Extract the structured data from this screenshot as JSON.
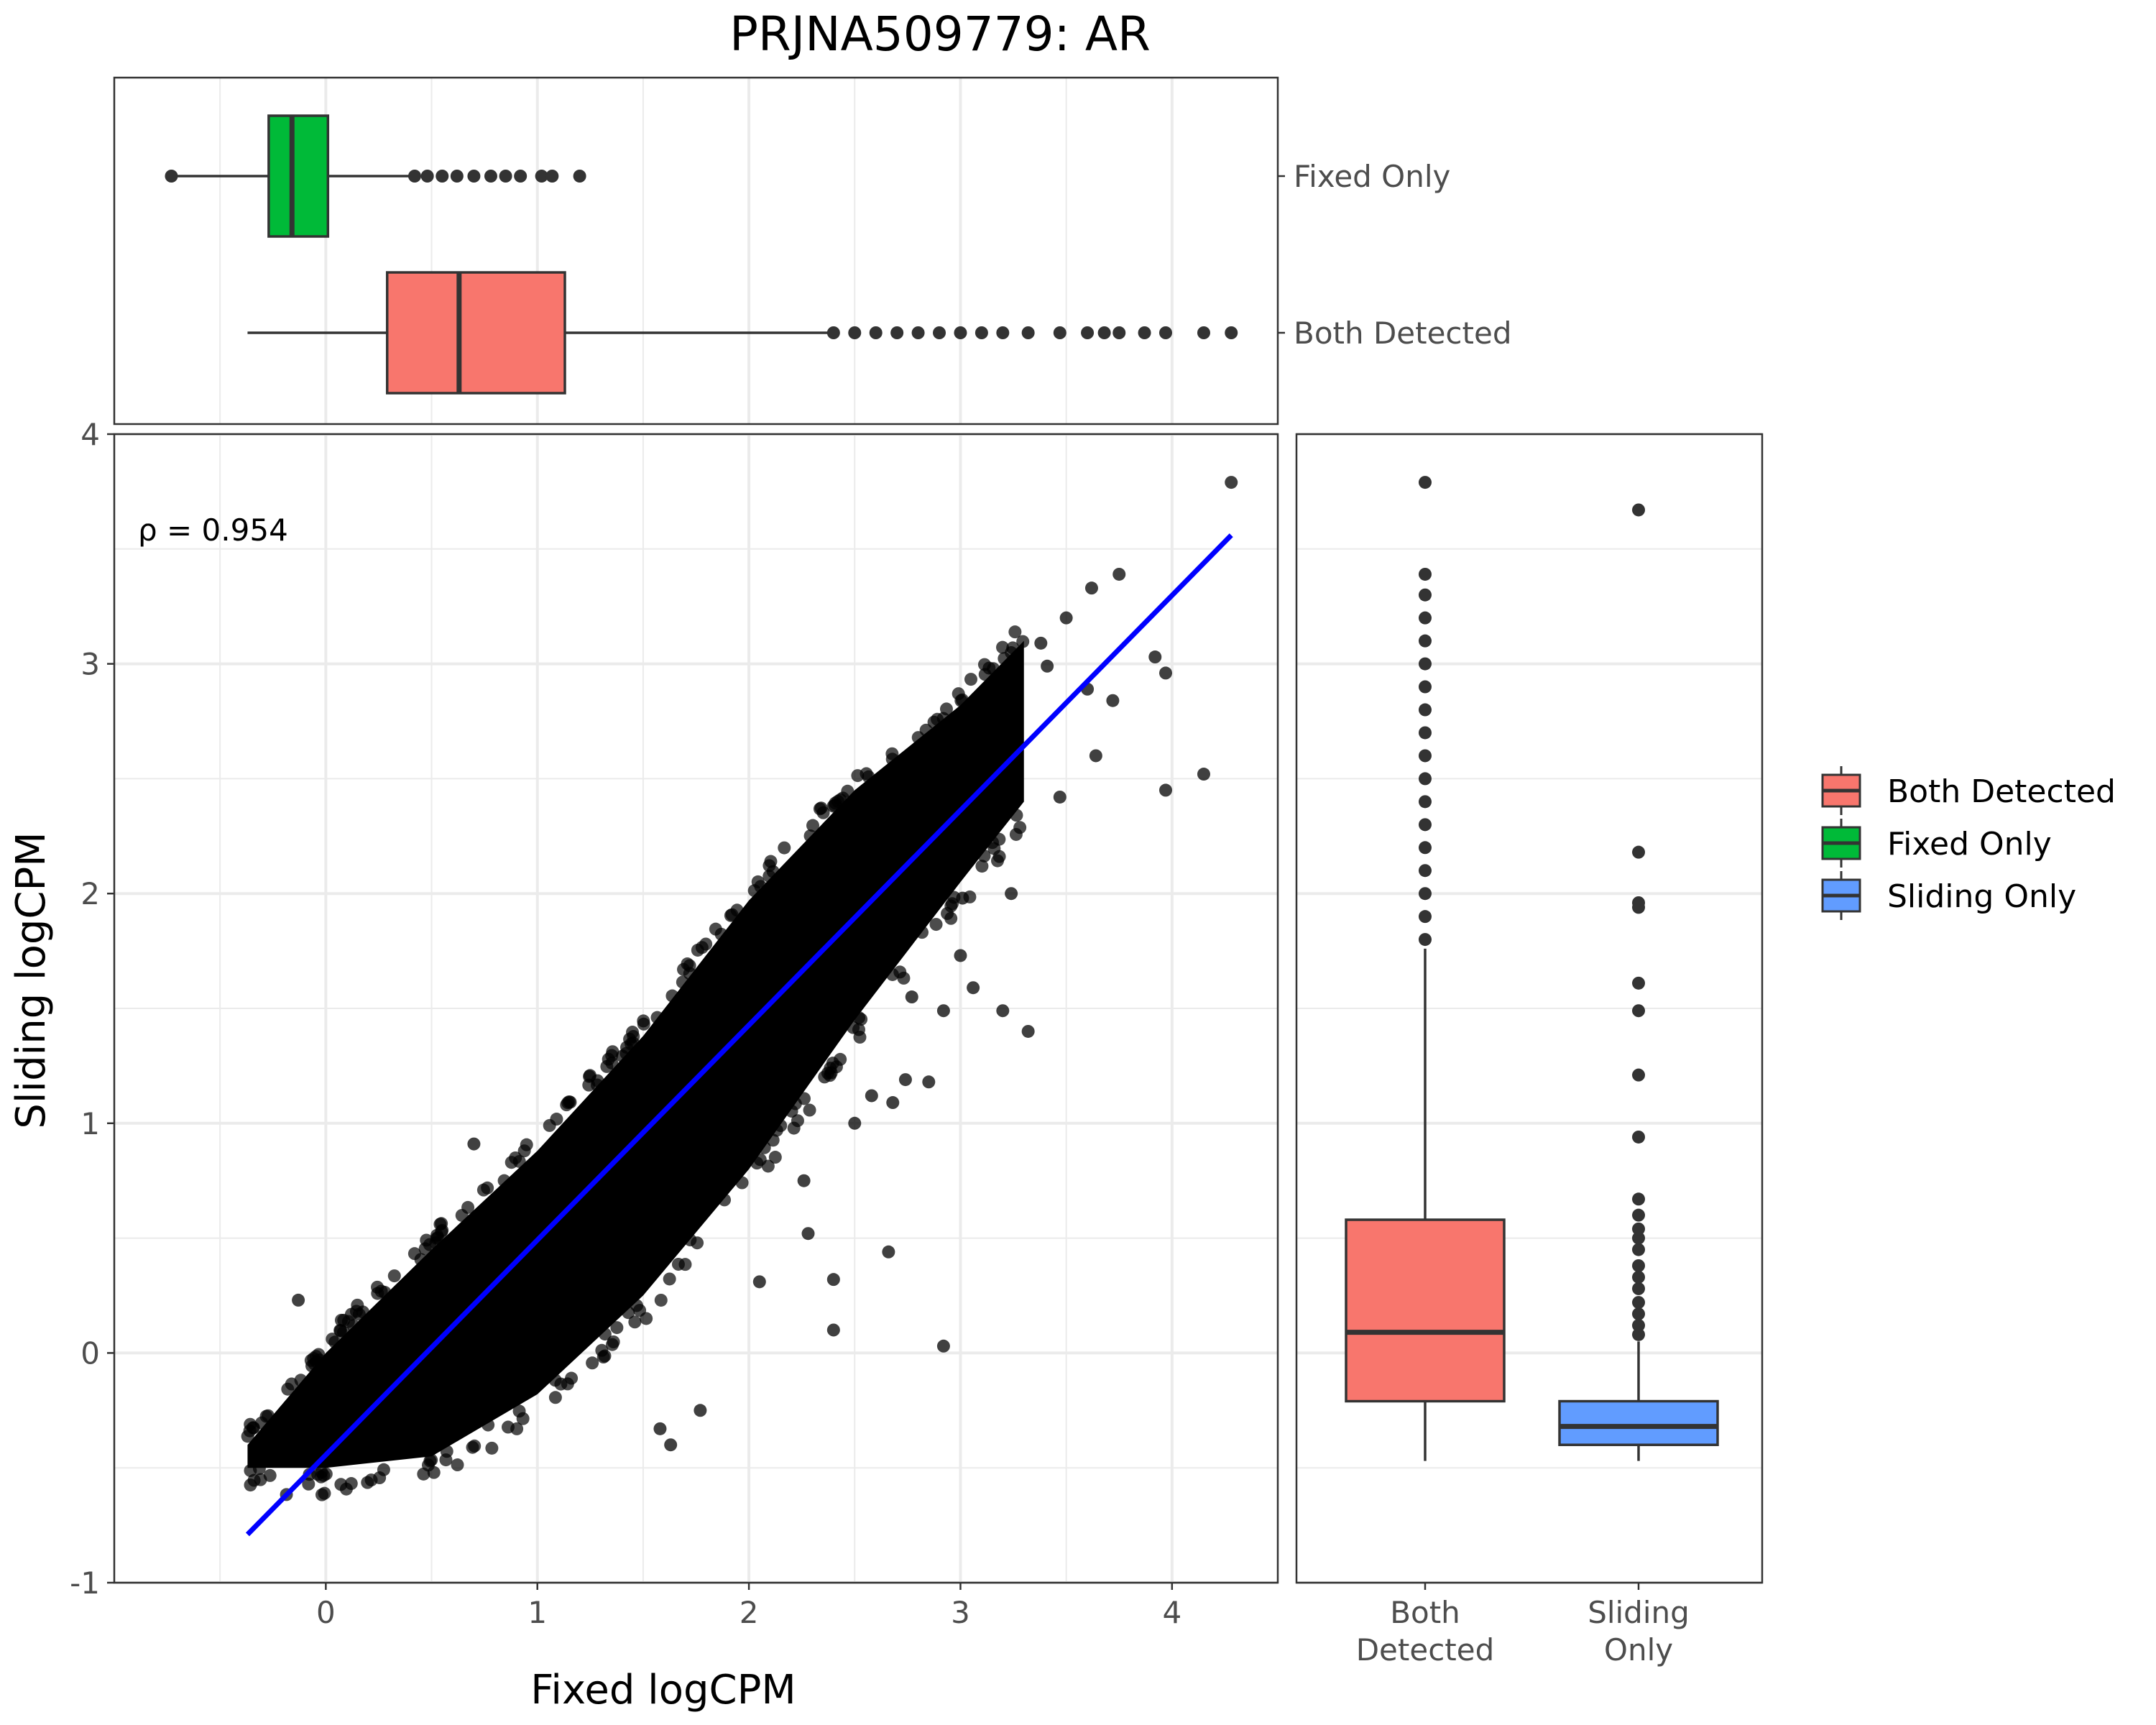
{
  "chart_data": [
    {
      "type": "scatter",
      "title": "PRJNA509779: AR",
      "xlabel": "Fixed logCPM",
      "ylabel": "Sliding logCPM",
      "xlim": [
        -1.0,
        4.5
      ],
      "ylim": [
        -1.0,
        4.0
      ],
      "x_ticks": [
        "0",
        "1",
        "2",
        "3",
        "4"
      ],
      "y_ticks": [
        "-1",
        "0",
        "1",
        "2",
        "3",
        "4"
      ],
      "grid": true,
      "annotation": "ρ = 0.954",
      "point_color": "#000000",
      "fit_line": {
        "color": "#0000ff",
        "x": [
          -0.37,
          4.28
        ],
        "y": [
          -0.79,
          3.56
        ]
      },
      "outlier_points": [
        {
          "x": 4.28,
          "y": 3.79
        },
        {
          "x": 3.75,
          "y": 3.39
        },
        {
          "x": 3.62,
          "y": 3.33
        },
        {
          "x": 3.5,
          "y": 3.2
        },
        {
          "x": 3.38,
          "y": 3.09
        },
        {
          "x": 3.41,
          "y": 2.99
        },
        {
          "x": 3.72,
          "y": 2.84
        },
        {
          "x": 3.92,
          "y": 3.03
        },
        {
          "x": 3.97,
          "y": 2.96
        },
        {
          "x": 3.6,
          "y": 2.89
        },
        {
          "x": 3.64,
          "y": 2.6
        },
        {
          "x": 3.97,
          "y": 2.45
        },
        {
          "x": 4.15,
          "y": 2.52
        },
        {
          "x": 3.47,
          "y": 2.42
        },
        {
          "x": 3.24,
          "y": 2.0
        },
        {
          "x": 3.01,
          "y": 1.98
        },
        {
          "x": 3.0,
          "y": 1.73
        },
        {
          "x": 3.06,
          "y": 1.59
        },
        {
          "x": 3.2,
          "y": 1.49
        },
        {
          "x": 2.92,
          "y": 1.49
        },
        {
          "x": 2.77,
          "y": 1.55
        },
        {
          "x": 3.32,
          "y": 1.4
        },
        {
          "x": 2.85,
          "y": 1.18
        },
        {
          "x": 2.74,
          "y": 1.19
        },
        {
          "x": 2.68,
          "y": 1.09
        },
        {
          "x": 2.58,
          "y": 1.12
        },
        {
          "x": 2.26,
          "y": 0.75
        },
        {
          "x": 2.66,
          "y": 0.44
        },
        {
          "x": 2.4,
          "y": 0.32
        },
        {
          "x": 2.4,
          "y": 0.1
        },
        {
          "x": 2.92,
          "y": 0.03
        },
        {
          "x": 1.77,
          "y": -0.25
        },
        {
          "x": 1.58,
          "y": -0.33
        },
        {
          "x": 1.63,
          "y": -0.4
        },
        {
          "x": 0.7,
          "y": 0.91
        },
        {
          "x": -0.13,
          "y": 0.23
        },
        {
          "x": 2.05,
          "y": 0.31
        },
        {
          "x": 2.28,
          "y": 0.52
        },
        {
          "x": 2.5,
          "y": 1.0
        }
      ],
      "dense_band": {
        "x_range": [
          -0.37,
          3.3
        ],
        "upper": [
          [
            -0.37,
            -0.4
          ],
          [
            0.0,
            0.0
          ],
          [
            0.5,
            0.45
          ],
          [
            1.0,
            0.88
          ],
          [
            1.5,
            1.38
          ],
          [
            2.0,
            1.97
          ],
          [
            2.5,
            2.45
          ],
          [
            3.0,
            2.82
          ],
          [
            3.3,
            3.1
          ]
        ],
        "lower": [
          [
            -0.37,
            -0.5
          ],
          [
            0.0,
            -0.5
          ],
          [
            0.5,
            -0.45
          ],
          [
            1.0,
            -0.18
          ],
          [
            1.5,
            0.25
          ],
          [
            2.0,
            0.8
          ],
          [
            2.5,
            1.45
          ],
          [
            3.0,
            2.05
          ],
          [
            3.3,
            2.4
          ]
        ]
      }
    },
    {
      "type": "boxplot",
      "orientation": "horizontal",
      "categories": [
        "Fixed Only",
        "Both Detected"
      ],
      "series": [
        {
          "name": "Fixed Only",
          "color": "#00ba38",
          "min": -0.73,
          "q1": -0.27,
          "median": -0.16,
          "q3": 0.01,
          "max": 0.4,
          "outliers": [
            0.42,
            0.48,
            0.55,
            0.62,
            0.7,
            0.78,
            0.85,
            0.92,
            1.02,
            1.07,
            1.2
          ]
        },
        {
          "name": "Both Detected",
          "color": "#f8766d",
          "min": -0.37,
          "q1": 0.29,
          "median": 0.63,
          "q3": 1.13,
          "max": 2.38,
          "outliers": [
            2.4,
            2.5,
            2.6,
            2.7,
            2.8,
            2.9,
            3.0,
            3.1,
            3.2,
            3.32,
            3.47,
            3.6,
            3.68,
            3.75,
            3.87,
            3.97,
            4.15,
            4.28
          ]
        }
      ]
    },
    {
      "type": "boxplot",
      "orientation": "vertical",
      "categories": [
        "Both\nDetected",
        "Sliding\nOnly"
      ],
      "category_lines": [
        [
          "Both",
          "Detected"
        ],
        [
          "Sliding",
          "Only"
        ]
      ],
      "series": [
        {
          "name": "Both Detected",
          "color": "#f8766d",
          "min": -0.47,
          "q1": -0.21,
          "median": 0.09,
          "q3": 0.58,
          "max": 1.76,
          "outliers": [
            1.8,
            1.9,
            2.0,
            2.1,
            2.2,
            2.3,
            2.4,
            2.5,
            2.6,
            2.7,
            2.8,
            2.9,
            3.0,
            3.1,
            3.2,
            3.3,
            3.39,
            3.79
          ]
        },
        {
          "name": "Sliding Only",
          "color": "#619cff",
          "min": -0.47,
          "q1": -0.4,
          "median": -0.32,
          "q3": -0.21,
          "max": 0.05,
          "outliers": [
            0.08,
            0.12,
            0.17,
            0.22,
            0.28,
            0.33,
            0.38,
            0.45,
            0.5,
            0.54,
            0.6,
            0.67,
            0.94,
            1.21,
            1.49,
            1.61,
            1.94,
            1.96,
            2.18,
            3.67
          ]
        }
      ]
    }
  ],
  "legend": {
    "placement": "right",
    "entries": [
      {
        "label": "Both Detected",
        "color": "#f8766d"
      },
      {
        "label": "Fixed Only",
        "color": "#00ba38"
      },
      {
        "label": "Sliding Only",
        "color": "#619cff"
      }
    ]
  }
}
